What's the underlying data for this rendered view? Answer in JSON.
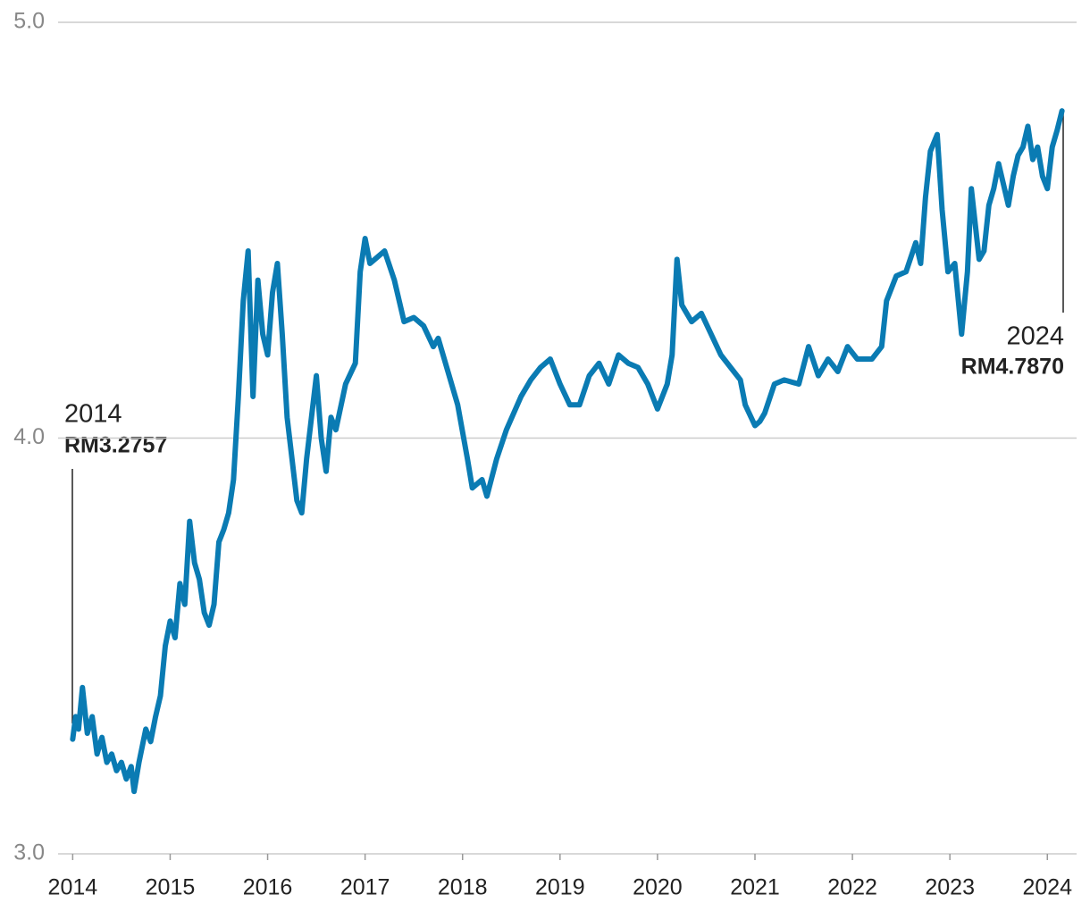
{
  "chart_data": {
    "type": "line",
    "x": [
      2014.0,
      2014.03,
      2014.06,
      2014.1,
      2014.15,
      2014.2,
      2014.25,
      2014.3,
      2014.35,
      2014.4,
      2014.45,
      2014.5,
      2014.55,
      2014.6,
      2014.63,
      2014.68,
      2014.75,
      2014.8,
      2014.85,
      2014.9,
      2014.95,
      2015.0,
      2015.05,
      2015.1,
      2015.15,
      2015.2,
      2015.25,
      2015.3,
      2015.35,
      2015.4,
      2015.45,
      2015.5,
      2015.55,
      2015.6,
      2015.65,
      2015.7,
      2015.75,
      2015.8,
      2015.85,
      2015.9,
      2015.95,
      2016.0,
      2016.05,
      2016.1,
      2016.15,
      2016.2,
      2016.25,
      2016.3,
      2016.35,
      2016.4,
      2016.45,
      2016.5,
      2016.55,
      2016.6,
      2016.65,
      2016.7,
      2016.8,
      2016.9,
      2016.95,
      2017.0,
      2017.05,
      2017.1,
      2017.2,
      2017.3,
      2017.4,
      2017.5,
      2017.6,
      2017.7,
      2017.75,
      2017.85,
      2017.95,
      2018.05,
      2018.1,
      2018.2,
      2018.25,
      2018.35,
      2018.45,
      2018.6,
      2018.7,
      2018.8,
      2018.9,
      2019.0,
      2019.1,
      2019.2,
      2019.3,
      2019.4,
      2019.5,
      2019.6,
      2019.7,
      2019.8,
      2019.9,
      2020.0,
      2020.1,
      2020.15,
      2020.2,
      2020.25,
      2020.35,
      2020.45,
      2020.55,
      2020.65,
      2020.75,
      2020.85,
      2020.9,
      2021.0,
      2021.05,
      2021.1,
      2021.2,
      2021.3,
      2021.45,
      2021.55,
      2021.65,
      2021.75,
      2021.85,
      2021.95,
      2022.05,
      2022.2,
      2022.3,
      2022.35,
      2022.45,
      2022.55,
      2022.65,
      2022.7,
      2022.75,
      2022.8,
      2022.87,
      2022.92,
      2022.98,
      2023.05,
      2023.12,
      2023.18,
      2023.22,
      2023.3,
      2023.35,
      2023.4,
      2023.45,
      2023.5,
      2023.55,
      2023.6,
      2023.65,
      2023.7,
      2023.75,
      2023.8,
      2023.85,
      2023.9,
      2023.95,
      2024.0,
      2024.05,
      2024.1,
      2024.15
    ],
    "series": [
      {
        "color": "#0a7bb3",
        "values": [
          3.2757,
          3.33,
          3.3,
          3.4,
          3.29,
          3.33,
          3.24,
          3.28,
          3.22,
          3.24,
          3.2,
          3.22,
          3.18,
          3.21,
          3.15,
          3.22,
          3.3,
          3.27,
          3.33,
          3.38,
          3.5,
          3.56,
          3.52,
          3.65,
          3.6,
          3.8,
          3.7,
          3.66,
          3.58,
          3.55,
          3.6,
          3.75,
          3.78,
          3.82,
          3.9,
          4.1,
          4.33,
          4.45,
          4.1,
          4.38,
          4.25,
          4.2,
          4.35,
          4.42,
          4.25,
          4.05,
          3.95,
          3.85,
          3.82,
          3.95,
          4.05,
          4.15,
          4.0,
          3.92,
          4.05,
          4.02,
          4.13,
          4.18,
          4.4,
          4.48,
          4.42,
          4.43,
          4.45,
          4.38,
          4.28,
          4.29,
          4.27,
          4.22,
          4.24,
          4.16,
          4.08,
          3.95,
          3.88,
          3.9,
          3.86,
          3.95,
          4.02,
          4.1,
          4.14,
          4.17,
          4.19,
          4.13,
          4.08,
          4.08,
          4.15,
          4.18,
          4.13,
          4.2,
          4.18,
          4.17,
          4.13,
          4.07,
          4.13,
          4.2,
          4.43,
          4.32,
          4.28,
          4.3,
          4.25,
          4.2,
          4.17,
          4.14,
          4.08,
          4.03,
          4.04,
          4.06,
          4.13,
          4.14,
          4.13,
          4.22,
          4.15,
          4.19,
          4.16,
          4.22,
          4.19,
          4.19,
          4.22,
          4.33,
          4.39,
          4.4,
          4.47,
          4.42,
          4.58,
          4.69,
          4.73,
          4.55,
          4.4,
          4.42,
          4.25,
          4.4,
          4.6,
          4.43,
          4.45,
          4.56,
          4.6,
          4.66,
          4.61,
          4.56,
          4.63,
          4.68,
          4.7,
          4.75,
          4.67,
          4.7,
          4.63,
          4.6,
          4.7,
          4.74,
          4.787
        ]
      }
    ],
    "xlim": [
      2013.85,
      2024.3
    ],
    "xticks": [
      2014,
      2015,
      2016,
      2017,
      2018,
      2019,
      2020,
      2021,
      2022,
      2023,
      2024
    ],
    "ylim": [
      3,
      5
    ],
    "yticks": [
      {
        "value": 3,
        "label": "3.0"
      },
      {
        "value": 4,
        "label": "4.0"
      },
      {
        "value": 5,
        "label": "5.0"
      }
    ],
    "grid": true,
    "annotations": [
      {
        "title": "2014",
        "text": "RM3.2757"
      },
      {
        "title": "2024",
        "text": "RM4.7870"
      }
    ]
  }
}
